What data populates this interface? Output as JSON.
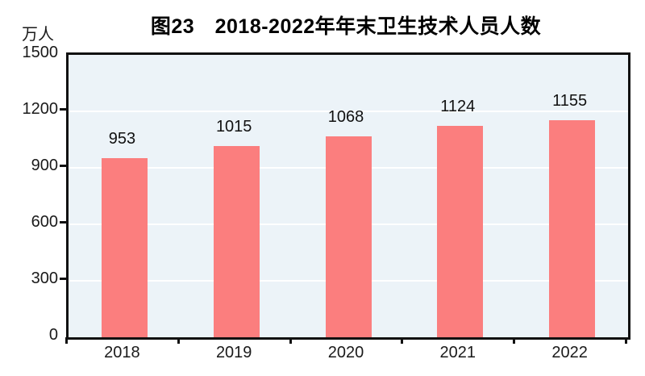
{
  "page": {
    "background": "#FFFFFF"
  },
  "chart_data": {
    "type": "bar",
    "title": "图23　2018-2022年年末卫生技术人员人数",
    "unit_label": "万人",
    "categories": [
      "2018",
      "2019",
      "2020",
      "2021",
      "2022"
    ],
    "values": [
      953,
      1015,
      1068,
      1124,
      1155
    ],
    "xlabel": "",
    "ylabel": "万人",
    "ylim": [
      0,
      1500
    ],
    "yticks": [
      0,
      300,
      600,
      900,
      1200,
      1500
    ],
    "grid": "horizontal-white-lines-at-yticks",
    "legend_position": "none",
    "data_labels": "above-bars",
    "colors": {
      "bar": "#FB7E7E",
      "plot_background": "#ECF3F8",
      "gridline": "#FFFFFF",
      "axis": "#111111",
      "text": "#1A1A1A"
    }
  }
}
